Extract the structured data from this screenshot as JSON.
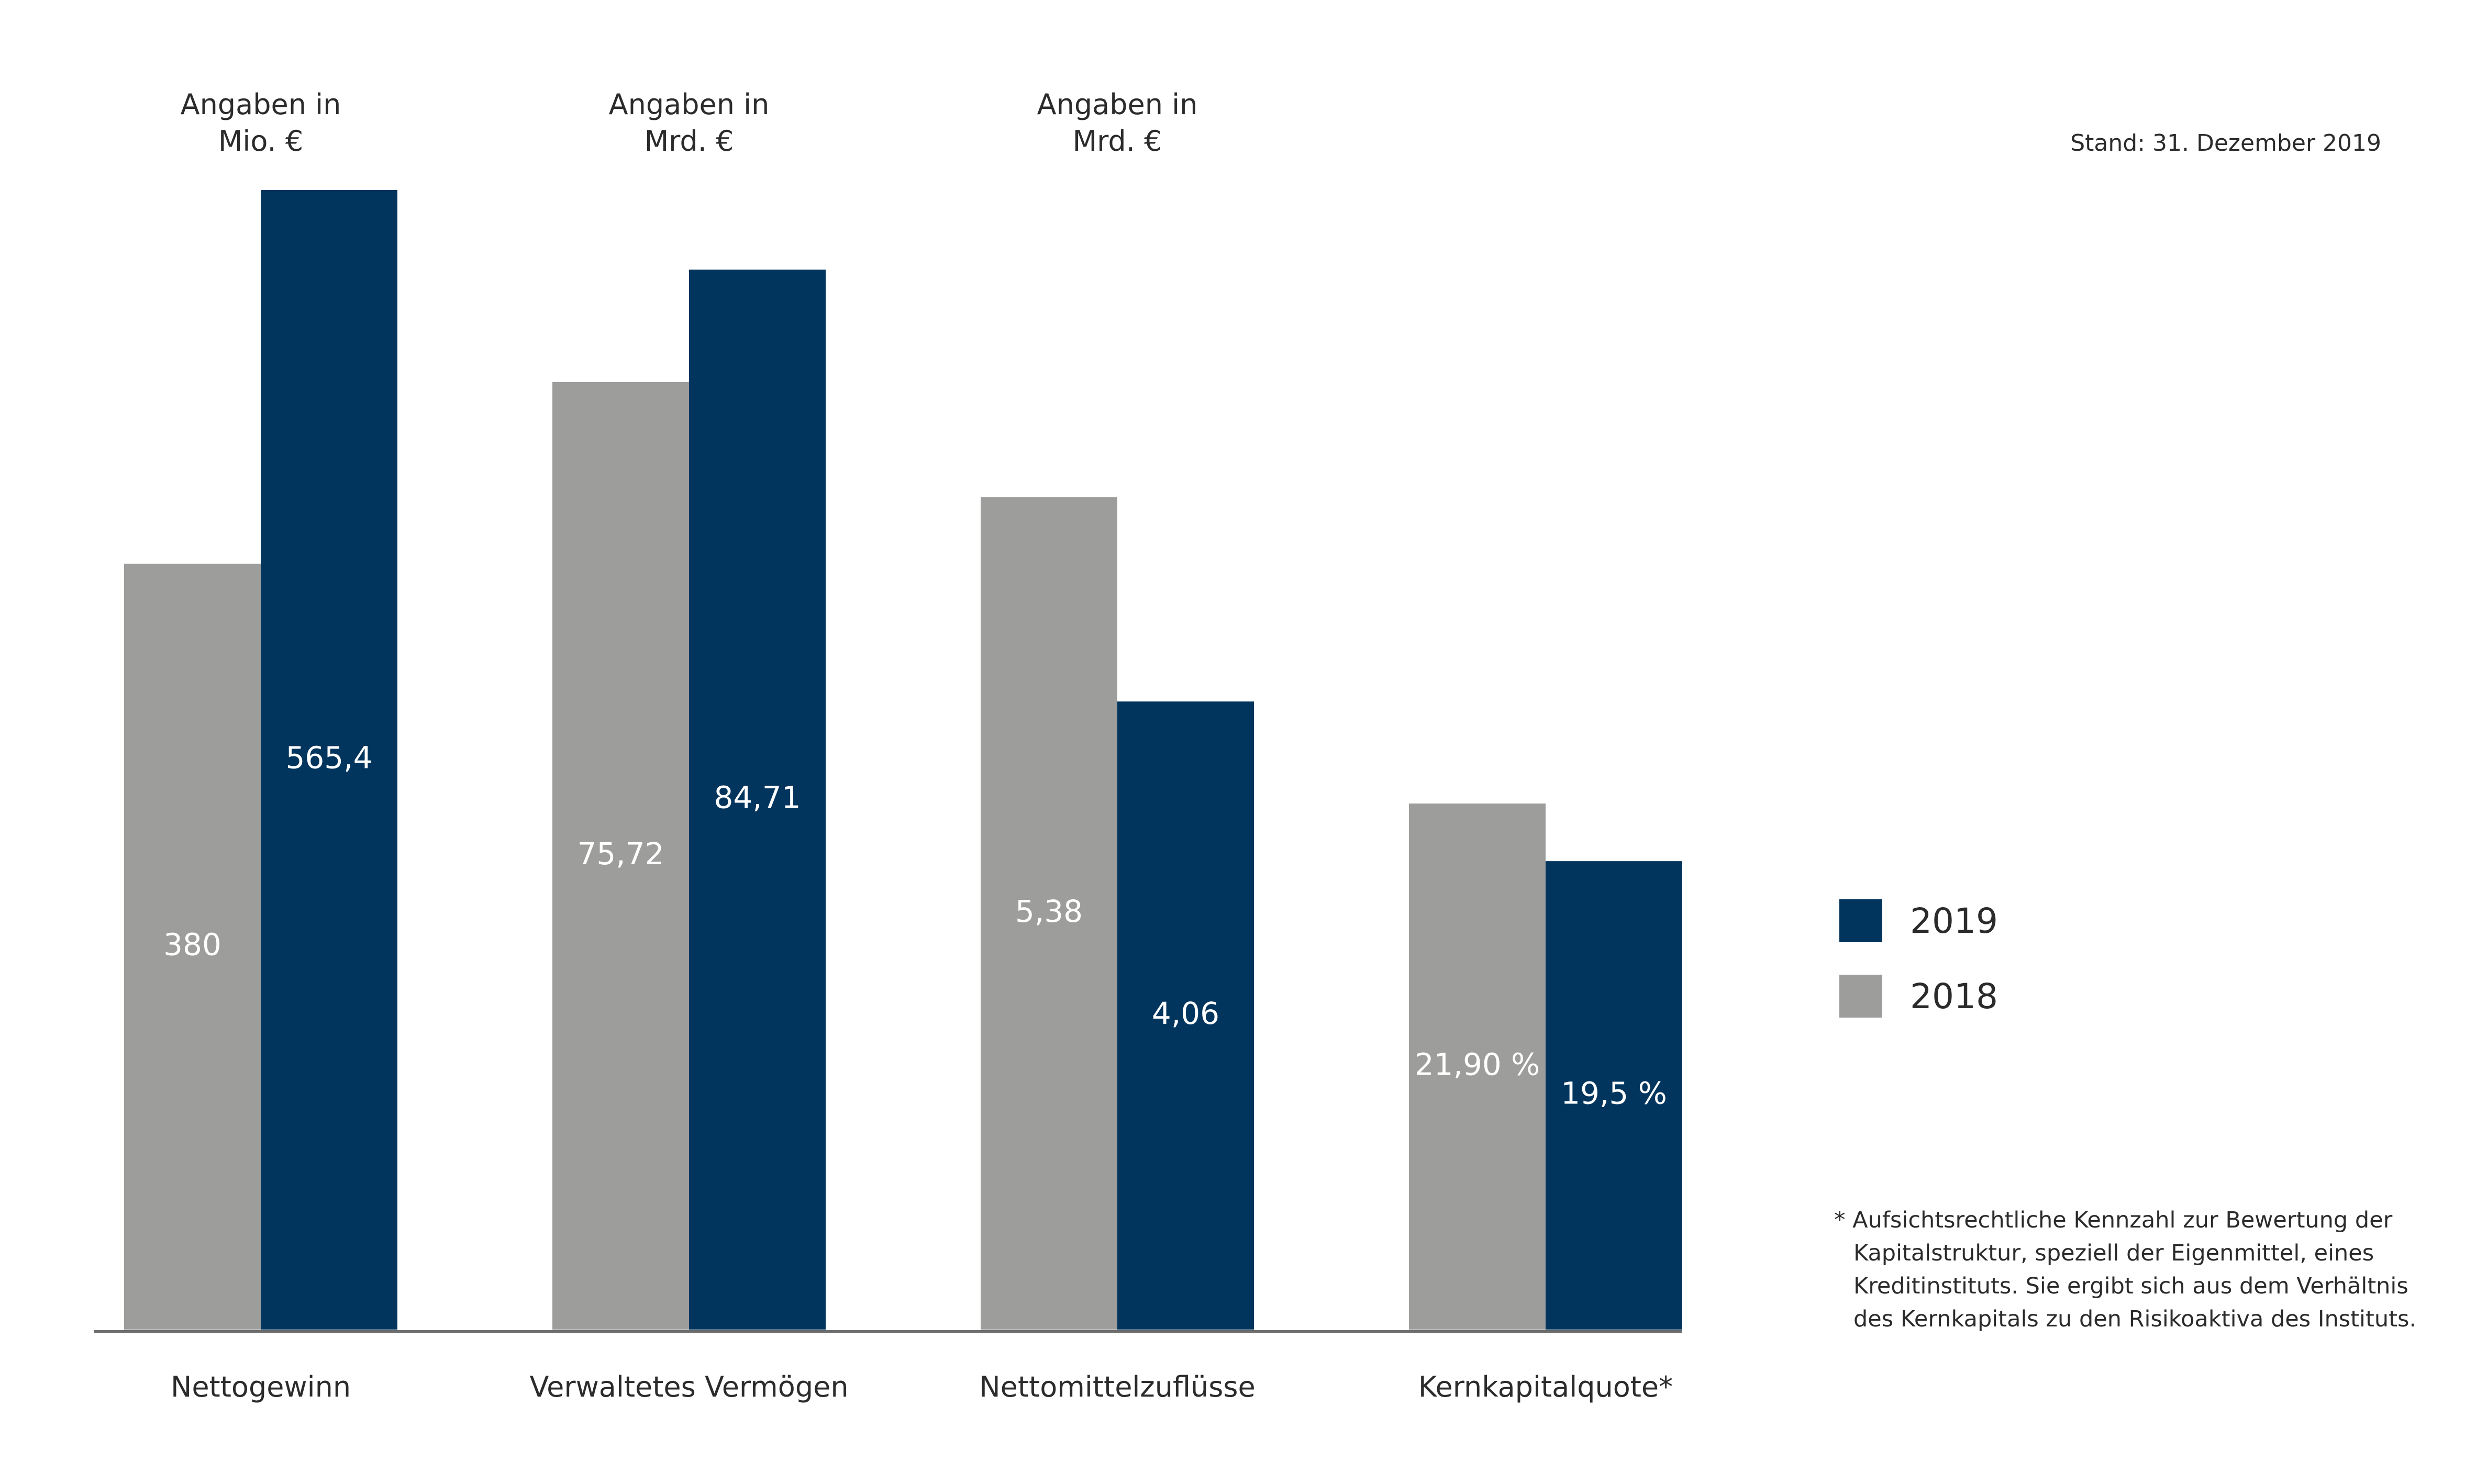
{
  "stand": "Stand: 31. Dezember 2019",
  "colors": {
    "y2018": "#9d9d9c",
    "y2019": "#02355e",
    "axis": "#6f6f6f",
    "text": "#2b2b2b"
  },
  "legend": [
    {
      "label": "2019",
      "color": "#02355e"
    },
    {
      "label": "2018",
      "color": "#9d9d9c"
    }
  ],
  "footnote": [
    "* Aufsichtsrechtliche Kennzahl zur Bewertung der",
    "Kapitalstruktur, speziell der Eigenmittel, eines",
    "Kreditinstituts. Sie ergibt sich aus dem Verhältnis",
    "des Kernkapitals zu den Risikoaktiva des Instituts."
  ],
  "chart_data": {
    "type": "bar",
    "categories": [
      "Nettogewinn",
      "Verwaltetes Vermögen",
      "Nettomittelzuflüsse",
      "Kernkapitalquote*"
    ],
    "units": [
      [
        "Angaben in",
        "Mio. €"
      ],
      [
        "Angaben in",
        "Mrd. €"
      ],
      [
        "Angaben in",
        "Mrd. €"
      ],
      []
    ],
    "series": [
      {
        "name": "2018",
        "values": [
          380,
          75.72,
          5.38,
          21.9
        ],
        "labels": [
          "380",
          "75,72",
          "5,38",
          "21,90 %"
        ]
      },
      {
        "name": "2019",
        "values": [
          565.4,
          84.71,
          4.06,
          19.5
        ],
        "labels": [
          "565,4",
          "84,71",
          "4,06",
          "19,5 %"
        ]
      }
    ],
    "legend_position": "right",
    "grid": false
  }
}
